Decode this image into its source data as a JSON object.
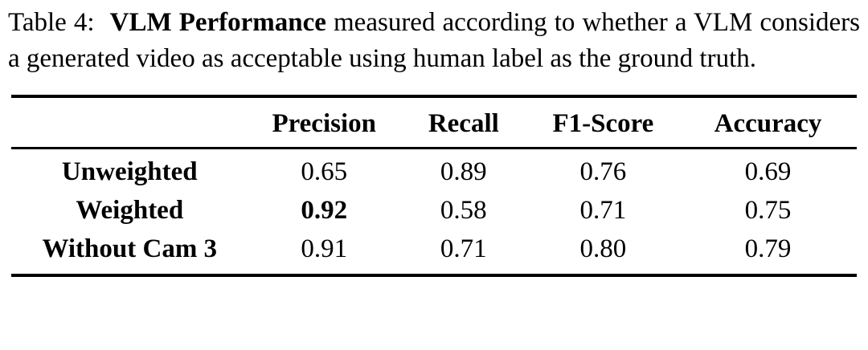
{
  "caption": {
    "prefix": "Table 4:",
    "bold": "VLM Performance",
    "rest": "measured according to whether a VLM considers a generated video as acceptable using human label as the ground truth."
  },
  "table": {
    "columns": [
      "Precision",
      "Recall",
      "F1-Score",
      "Accuracy"
    ],
    "rows": [
      {
        "label": "Unweighted",
        "values": [
          "0.65",
          "0.89",
          "0.76",
          "0.69"
        ]
      },
      {
        "label": "Weighted",
        "values": [
          "0.92",
          "0.58",
          "0.71",
          "0.75"
        ]
      },
      {
        "label": "Without Cam 3",
        "values": [
          "0.91",
          "0.71",
          "0.80",
          "0.79"
        ]
      }
    ],
    "bold_cell_note": "row Weighted, column Precision is bold"
  },
  "colors": {
    "text": "#000000",
    "background": "#ffffff",
    "rule": "#000000"
  }
}
